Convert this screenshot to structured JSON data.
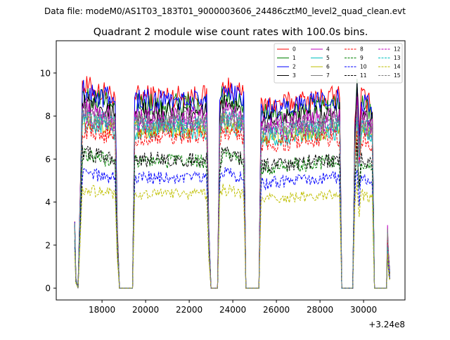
{
  "chart_data": {
    "type": "line",
    "suptitle": "Data file: modeM0/AS1T03_183T01_9000003606_24486cztM0_level2_quad_clean.evt",
    "title": "Quadrant 2 module wise count rates with 100.0s bins.",
    "xlabel": "",
    "ylabel": "",
    "x_offset_label": "+3.24e8",
    "xlim": [
      15900,
      31900
    ],
    "ylim": [
      -0.55,
      11.5
    ],
    "x_ticks": [
      18000,
      20000,
      22000,
      24000,
      26000,
      28000,
      30000
    ],
    "x_tick_labels": [
      "18000",
      "20000",
      "22000",
      "24000",
      "26000",
      "28000",
      "30000"
    ],
    "y_ticks": [
      0,
      2,
      4,
      6,
      8,
      10
    ],
    "y_tick_labels": [
      "0",
      "2",
      "4",
      "6",
      "8",
      "10"
    ],
    "bin_width": 100,
    "segments": [
      {
        "start": 16750,
        "end": 19400,
        "profile": [
          [
            16750,
            0.35
          ],
          [
            16800,
            0.05
          ],
          [
            16900,
            0.0
          ],
          [
            17000,
            0.5
          ],
          [
            17100,
            1.0
          ],
          [
            18600,
            0.95
          ],
          [
            18700,
            0.3
          ],
          [
            18800,
            0.0
          ]
        ]
      },
      {
        "start": 19400,
        "end": 24700,
        "profile": [
          [
            19400,
            0.0
          ],
          [
            19500,
            0.95
          ],
          [
            22800,
            0.95
          ],
          [
            22900,
            0.3
          ],
          [
            23000,
            0.0
          ],
          [
            23300,
            0.0
          ],
          [
            23400,
            0.9
          ],
          [
            23500,
            1.0
          ],
          [
            24500,
            0.95
          ],
          [
            24600,
            0.0
          ]
        ]
      },
      {
        "start": 24700,
        "end": 31100,
        "profile": [
          [
            24700,
            0.0
          ],
          [
            25200,
            0.0
          ],
          [
            25300,
            0.9
          ],
          [
            28900,
            0.95
          ],
          [
            29000,
            0.0
          ],
          [
            29500,
            0.0
          ],
          [
            29600,
            0.8
          ],
          [
            29700,
            1.05
          ],
          [
            29800,
            0.75
          ],
          [
            29900,
            0.95
          ],
          [
            30400,
            0.9
          ],
          [
            30500,
            0.0
          ],
          [
            31000,
            0.0
          ]
        ]
      },
      {
        "start": 31100,
        "end": 31300,
        "profile": [
          [
            31100,
            0.3
          ],
          [
            31150,
            0.15
          ],
          [
            31200,
            0.08
          ]
        ]
      }
    ],
    "series": [
      {
        "name": "0",
        "color": "#ff0000",
        "style": "solid",
        "level": 9.4
      },
      {
        "name": "1",
        "color": "#008000",
        "style": "solid",
        "level": 9.0
      },
      {
        "name": "2",
        "color": "#0000ff",
        "style": "solid",
        "level": 9.2
      },
      {
        "name": "3",
        "color": "#000000",
        "style": "solid",
        "level": 8.6
      },
      {
        "name": "4",
        "color": "#bf00bf",
        "style": "solid",
        "level": 8.4
      },
      {
        "name": "5",
        "color": "#00bfbf",
        "style": "solid",
        "level": 7.7
      },
      {
        "name": "6",
        "color": "#bfbf00",
        "style": "solid",
        "level": 7.8
      },
      {
        "name": "7",
        "color": "#7f7f7f",
        "style": "solid",
        "level": 8.0
      },
      {
        "name": "8",
        "color": "#ff0000",
        "style": "dashed",
        "level": 7.4
      },
      {
        "name": "9",
        "color": "#008000",
        "style": "dashed",
        "level": 6.2
      },
      {
        "name": "10",
        "color": "#0000ff",
        "style": "dashed",
        "level": 5.4
      },
      {
        "name": "11",
        "color": "#000000",
        "style": "dashed",
        "level": 6.3
      },
      {
        "name": "12",
        "color": "#bf00bf",
        "style": "dashed",
        "level": 8.1
      },
      {
        "name": "13",
        "color": "#00bfbf",
        "style": "dashed",
        "level": 8.0
      },
      {
        "name": "14",
        "color": "#bfbf00",
        "style": "dashed",
        "level": 4.6
      },
      {
        "name": "15",
        "color": "#7f7f7f",
        "style": "dashed",
        "level": 8.2
      }
    ],
    "legend_position": "top-right",
    "legend_columns": 4,
    "grid": false
  }
}
